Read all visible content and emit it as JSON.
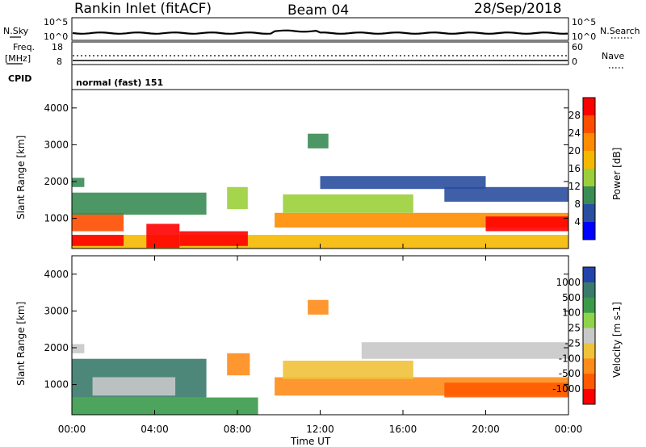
{
  "header": {
    "station": "Rankin Inlet (fitACF)",
    "beam": "Beam 04",
    "date": "28/Sep/2018"
  },
  "strip1": {
    "left_label": "N.Sky",
    "left_ticks": [
      "10^5",
      "10^0"
    ],
    "right_label": "N.Search",
    "right_ticks": [
      "10^5",
      "10^0"
    ]
  },
  "strip2": {
    "left_label_1": "Freq.",
    "left_label_2": "[MHz]",
    "left_ticks": [
      "18",
      "8"
    ],
    "right_label": "Nave",
    "right_ticks": [
      "60",
      "0"
    ]
  },
  "cpid": {
    "label": "CPID",
    "value": "normal (fast) 151"
  },
  "chart_data": [
    {
      "type": "heatmap",
      "name": "power",
      "ylabel": "Slant Range [km]",
      "y_ticks": [
        "4000",
        "3000",
        "2000",
        "1000"
      ],
      "y_tick_values": [
        4000,
        3000,
        2000,
        1000
      ],
      "ylim": [
        180,
        4500
      ],
      "colorbar_label": "Power [dB]",
      "colorbar_ticks": [
        "28",
        "24",
        "20",
        "16",
        "12",
        "8",
        "4"
      ],
      "colorbar_colors": [
        "#ff0000",
        "#ff4d00",
        "#ff8c00",
        "#f5b800",
        "#9bcf3a",
        "#3a8c55",
        "#2a4f9f",
        "#0000ff"
      ],
      "bands": [
        {
          "x0": 0.0,
          "x1": 24.0,
          "y0": 180,
          "y1": 550,
          "level": 3
        },
        {
          "x0": 0.0,
          "x1": 2.5,
          "y0": 250,
          "y1": 550,
          "level": 0
        },
        {
          "x0": 3.6,
          "x1": 5.2,
          "y0": 200,
          "y1": 850,
          "level": 0
        },
        {
          "x0": 5.2,
          "x1": 8.5,
          "y0": 250,
          "y1": 650,
          "level": 0
        },
        {
          "x0": 0.0,
          "x1": 2.5,
          "y0": 650,
          "y1": 1150,
          "level": 1
        },
        {
          "x0": 0.0,
          "x1": 6.5,
          "y0": 1100,
          "y1": 1700,
          "level": 5
        },
        {
          "x0": 7.5,
          "x1": 8.5,
          "y0": 1250,
          "y1": 1850,
          "level": 4
        },
        {
          "x0": 0.0,
          "x1": 0.6,
          "y0": 1850,
          "y1": 2100,
          "level": 5
        },
        {
          "x0": 9.8,
          "x1": 24.0,
          "y0": 750,
          "y1": 1150,
          "level": 2
        },
        {
          "x0": 20.0,
          "x1": 24.0,
          "y0": 650,
          "y1": 1050,
          "level": 0
        },
        {
          "x0": 10.2,
          "x1": 16.5,
          "y0": 1150,
          "y1": 1650,
          "level": 4
        },
        {
          "x0": 12.0,
          "x1": 20.0,
          "y0": 1800,
          "y1": 2150,
          "level": 6
        },
        {
          "x0": 18.0,
          "x1": 24.0,
          "y0": 1450,
          "y1": 1850,
          "level": 6
        },
        {
          "x0": 11.4,
          "x1": 12.4,
          "y0": 2900,
          "y1": 3300,
          "level": 5
        }
      ]
    },
    {
      "type": "heatmap",
      "name": "velocity",
      "ylabel": "Slant Range [km]",
      "y_ticks": [
        "4000",
        "3000",
        "2000",
        "1000"
      ],
      "y_tick_values": [
        4000,
        3000,
        2000,
        1000
      ],
      "ylim": [
        180,
        4500
      ],
      "colorbar_label": "Velocity [m s-1]",
      "colorbar_ticks": [
        "1000",
        "500",
        "100",
        "25",
        "-25",
        "-100",
        "-500",
        "-1000"
      ],
      "colorbar_colors": [
        "#2244aa",
        "#3a7a6a",
        "#3a9a4a",
        "#8fd34a",
        "#c8c8c8",
        "#f0c23a",
        "#ff8c1a",
        "#ff5a00",
        "#ff0000"
      ],
      "bands": [
        {
          "x0": 0.0,
          "x1": 9.0,
          "y0": 180,
          "y1": 650,
          "level": 2
        },
        {
          "x0": 0.0,
          "x1": 6.5,
          "y0": 650,
          "y1": 1700,
          "level": 1
        },
        {
          "x0": 1.0,
          "x1": 5.0,
          "y0": 700,
          "y1": 1200,
          "level": 4
        },
        {
          "x0": 7.5,
          "x1": 8.6,
          "y0": 1250,
          "y1": 1850,
          "level": 6
        },
        {
          "x0": 0.0,
          "x1": 0.6,
          "y0": 1850,
          "y1": 2100,
          "level": 4
        },
        {
          "x0": 9.8,
          "x1": 24.0,
          "y0": 700,
          "y1": 1200,
          "level": 6
        },
        {
          "x0": 18.0,
          "x1": 24.0,
          "y0": 650,
          "y1": 1050,
          "level": 7
        },
        {
          "x0": 10.2,
          "x1": 16.5,
          "y0": 1150,
          "y1": 1650,
          "level": 5
        },
        {
          "x0": 14.0,
          "x1": 24.0,
          "y0": 1700,
          "y1": 2150,
          "level": 4
        },
        {
          "x0": 11.4,
          "x1": 12.4,
          "y0": 2900,
          "y1": 3300,
          "level": 6
        }
      ]
    }
  ],
  "x_axis": {
    "ticks": [
      "00:00",
      "04:00",
      "08:00",
      "12:00",
      "16:00",
      "20:00",
      "00:00"
    ],
    "tick_values": [
      0,
      4,
      8,
      12,
      16,
      20,
      24
    ],
    "xlim": [
      0,
      24
    ],
    "label": "Time UT"
  }
}
